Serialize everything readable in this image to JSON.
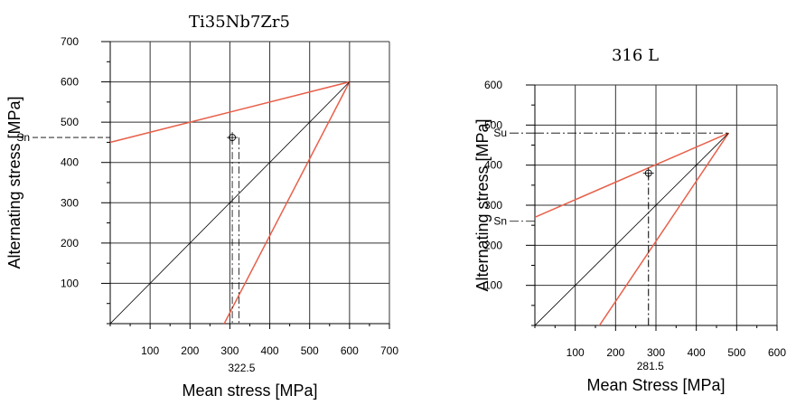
{
  "chart_data": [
    {
      "type": "line",
      "title": "Ti35Nb7Zr5",
      "xlabel": "Mean stress [MPa]",
      "ylabel": "Alternating stress  [MPa]",
      "xlim": [
        0,
        700
      ],
      "ylim": [
        0,
        700
      ],
      "x_ticks": [
        100,
        200,
        300,
        400,
        500,
        600,
        700
      ],
      "y_ticks": [
        100,
        200,
        300,
        400,
        500,
        600,
        700
      ],
      "grid": true,
      "series": [
        {
          "x": [
            0,
            600
          ],
          "y": [
            450,
            600
          ],
          "color": "#e8604a"
        },
        {
          "x": [
            600,
            270
          ],
          "y": [
            600,
            -30
          ],
          "color": "#e8604a"
        },
        {
          "x": [
            0,
            600
          ],
          "y": [
            0,
            600
          ],
          "color": "#000000"
        }
      ],
      "points": [
        {
          "x": 306,
          "y": 462
        }
      ],
      "annotations": [
        {
          "text": "Sn",
          "y": 462,
          "axis": "y"
        },
        {
          "text": "322.5",
          "x": 322.5,
          "axis": "x"
        }
      ]
    },
    {
      "type": "line",
      "title": "316 L",
      "xlabel": "Mean Stress [MPa]",
      "ylabel": "Alternating stress [MPa]",
      "xlim": [
        0,
        600
      ],
      "ylim": [
        0,
        600
      ],
      "x_ticks": [
        100,
        200,
        300,
        400,
        500,
        600
      ],
      "y_ticks": [
        100,
        200,
        300,
        400,
        500,
        600
      ],
      "grid": true,
      "series": [
        {
          "x": [
            0,
            480
          ],
          "y": [
            270,
            480
          ],
          "color": "#e8604a"
        },
        {
          "x": [
            480,
            150
          ],
          "y": [
            480,
            -15
          ],
          "color": "#e8604a"
        },
        {
          "x": [
            0,
            480
          ],
          "y": [
            0,
            480
          ],
          "color": "#000000"
        }
      ],
      "points": [
        {
          "x": 281.5,
          "y": 380
        }
      ],
      "annotations": [
        {
          "text": "Su",
          "y": 480,
          "axis": "y"
        },
        {
          "text": "Sn",
          "y": 260,
          "axis": "y"
        },
        {
          "text": "281.5",
          "x": 281.5,
          "axis": "x"
        }
      ]
    }
  ]
}
